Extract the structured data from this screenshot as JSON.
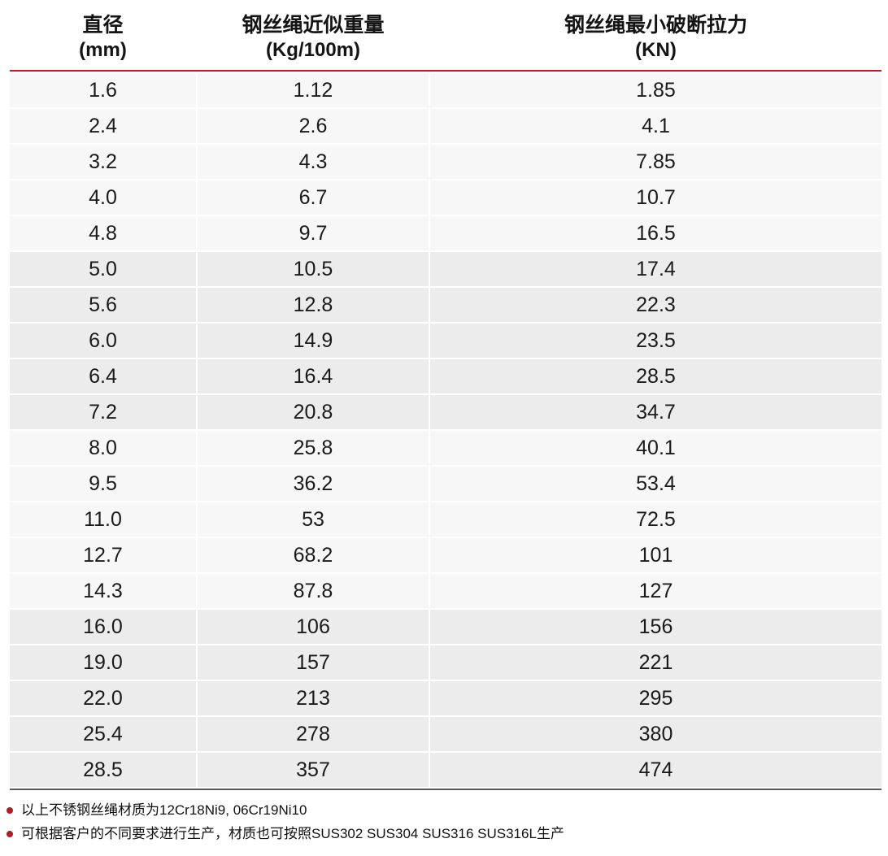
{
  "table": {
    "columns": [
      {
        "title": "直径",
        "unit": "(mm)"
      },
      {
        "title": "钢丝绳近似重量",
        "unit": "(Kg/100m)"
      },
      {
        "title": "钢丝绳最小破断拉力",
        "unit": "(KN)"
      }
    ],
    "rows": [
      [
        "1.6",
        "1.12",
        "1.85"
      ],
      [
        "2.4",
        "2.6",
        "4.1"
      ],
      [
        "3.2",
        "4.3",
        "7.85"
      ],
      [
        "4.0",
        "6.7",
        "10.7"
      ],
      [
        "4.8",
        "9.7",
        "16.5"
      ],
      [
        "5.0",
        "10.5",
        "17.4"
      ],
      [
        "5.6",
        "12.8",
        "22.3"
      ],
      [
        "6.0",
        "14.9",
        "23.5"
      ],
      [
        "6.4",
        "16.4",
        "28.5"
      ],
      [
        "7.2",
        "20.8",
        "34.7"
      ],
      [
        "8.0",
        "25.8",
        "40.1"
      ],
      [
        "9.5",
        "36.2",
        "53.4"
      ],
      [
        "11.0",
        "53",
        "72.5"
      ],
      [
        "12.7",
        "68.2",
        "101"
      ],
      [
        "14.3",
        "87.8",
        "127"
      ],
      [
        "16.0",
        "106",
        "156"
      ],
      [
        "19.0",
        "157",
        "221"
      ],
      [
        "22.0",
        "213",
        "295"
      ],
      [
        "25.4",
        "278",
        "380"
      ],
      [
        "28.5",
        "357",
        "474"
      ]
    ]
  },
  "notes": [
    "以上不锈钢丝绳材质为12Cr18Ni9, 06Cr19Ni10",
    "可根据客户的不同要求进行生产，材质也可按照SUS302 SUS304 SUS316 SUS316L生产"
  ],
  "colors": {
    "header_rule_red": "#c9161d",
    "band_light": "#f7f7f7",
    "band_dark": "#ececec",
    "bottom_border": "#58585a",
    "note_bullet_red": "#b01e24"
  }
}
